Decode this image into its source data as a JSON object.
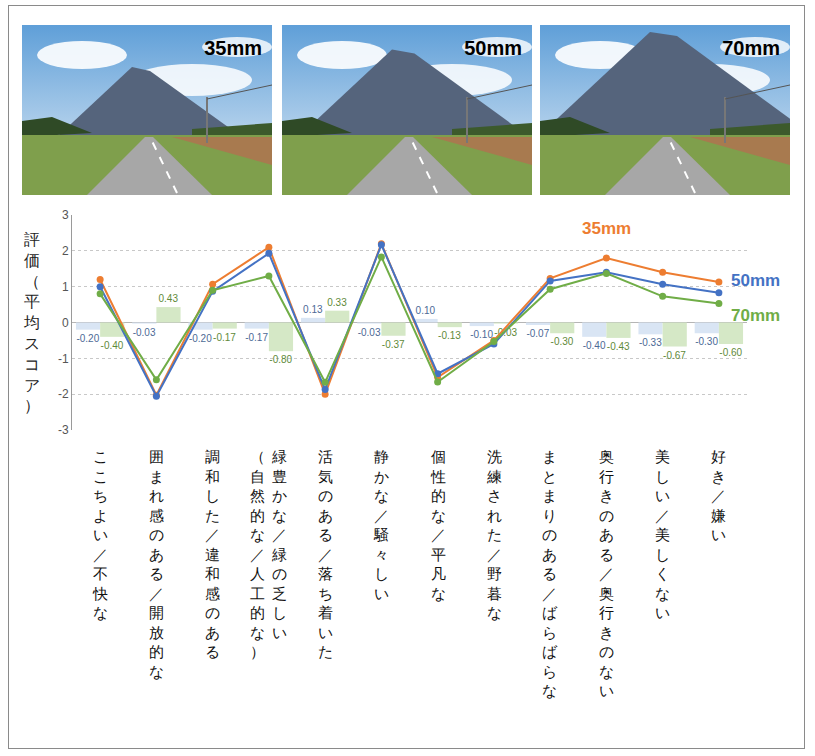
{
  "photos": [
    {
      "label": "35mm"
    },
    {
      "label": "50mm"
    },
    {
      "label": "70mm"
    }
  ],
  "chart_data": {
    "type": "line",
    "y_title": "評価（平均スコア）",
    "categories": [
      "ここちよい／不快な",
      "囲まれ感のある／開放的な",
      "調和した／違和感のある",
      "緑豊かな／緑の乏しい（自然的な／人工的な）",
      "活気のある／落ち着いた",
      "静かな／騒々しい",
      "個性的な／平凡な",
      "洗練された／野暮な",
      "まとまりのある／ばらばらな",
      "奥行きのある／奥行きのない",
      "美しい／美しくない",
      "好き／嫌い"
    ],
    "ylim": [
      -3,
      3
    ],
    "yticks": [
      -3,
      -2,
      -1,
      0,
      1,
      2,
      3
    ],
    "grid": true,
    "series": [
      {
        "type": "bar",
        "color": "#D9E5F4",
        "data_labels": true,
        "values": [
          -0.2,
          -0.03,
          -0.2,
          -0.17,
          0.13,
          -0.03,
          0.1,
          -0.1,
          -0.07,
          -0.4,
          -0.33,
          -0.3
        ],
        "value_labels": [
          "-0.20",
          "-0.03",
          "-0.20",
          "-0.17",
          "0.13",
          "-0.03",
          "0.10",
          "-0.10",
          "-0.07",
          "-0.40",
          "-0.33",
          "-0.30"
        ]
      },
      {
        "type": "bar",
        "color": "#D5E8C6",
        "data_labels": true,
        "values": [
          -0.4,
          0.43,
          -0.17,
          -0.8,
          0.33,
          -0.37,
          -0.13,
          -0.03,
          -0.3,
          -0.43,
          -0.67,
          -0.6
        ],
        "value_labels": [
          "-0.40",
          "0.43",
          "-0.17",
          "-0.80",
          "0.33",
          "-0.37",
          "-0.13",
          "-0.03",
          "-0.30",
          "-0.43",
          "-0.67",
          "-0.60"
        ]
      },
      {
        "type": "line",
        "name": "35mm",
        "color": "#ED7D31",
        "marker": "circle",
        "line_style": "solid",
        "values": [
          1.2,
          -2.03,
          1.07,
          2.1,
          -2.0,
          2.2,
          -1.53,
          -0.5,
          1.23,
          1.8,
          1.4,
          1.13
        ]
      },
      {
        "type": "line",
        "name": "50mm",
        "color": "#4472C4",
        "marker": "circle",
        "line_style": "solid",
        "values": [
          1.0,
          -2.06,
          0.87,
          1.93,
          -1.87,
          2.17,
          -1.43,
          -0.6,
          1.16,
          1.4,
          1.07,
          0.83
        ]
      },
      {
        "type": "line",
        "name": "70mm",
        "color": "#70AD47",
        "marker": "circle",
        "line_style": "solid",
        "values": [
          0.8,
          -1.6,
          0.9,
          1.3,
          -1.67,
          1.83,
          -1.66,
          -0.53,
          0.93,
          1.37,
          0.73,
          0.53
        ]
      }
    ]
  }
}
